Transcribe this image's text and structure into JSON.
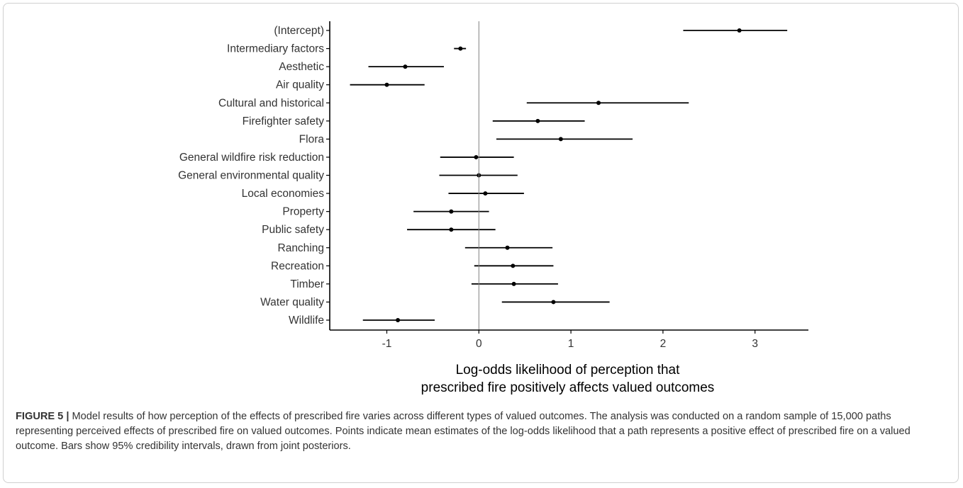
{
  "chart_data": {
    "type": "forest",
    "xlabel": [
      "Log-odds likelihood of perception that",
      "prescribed fire positively affects valued outcomes"
    ],
    "xlim": [
      -1.62,
      3.58
    ],
    "x_ticks": [
      -1,
      0,
      1,
      2,
      3
    ],
    "x_tick_labels": [
      "-1",
      "0",
      "1",
      "2",
      "3"
    ],
    "reference_line": 0,
    "grid": false,
    "rows": [
      {
        "label": "(Intercept)",
        "estimate": 2.83,
        "lower": 2.22,
        "upper": 3.35
      },
      {
        "label": "Intermediary factors",
        "estimate": -0.2,
        "lower": -0.27,
        "upper": -0.14
      },
      {
        "label": "Aesthetic",
        "estimate": -0.8,
        "lower": -1.2,
        "upper": -0.38
      },
      {
        "label": "Air quality",
        "estimate": -1.0,
        "lower": -1.4,
        "upper": -0.59
      },
      {
        "label": "Cultural and historical",
        "estimate": 1.3,
        "lower": 0.52,
        "upper": 2.28
      },
      {
        "label": "Firefighter safety",
        "estimate": 0.64,
        "lower": 0.15,
        "upper": 1.15
      },
      {
        "label": "Flora",
        "estimate": 0.89,
        "lower": 0.19,
        "upper": 1.67
      },
      {
        "label": "General wildfire risk reduction",
        "estimate": -0.03,
        "lower": -0.42,
        "upper": 0.38
      },
      {
        "label": "General environmental quality",
        "estimate": 0.0,
        "lower": -0.43,
        "upper": 0.42
      },
      {
        "label": "Local economies",
        "estimate": 0.07,
        "lower": -0.33,
        "upper": 0.49
      },
      {
        "label": "Property",
        "estimate": -0.3,
        "lower": -0.71,
        "upper": 0.11
      },
      {
        "label": "Public safety",
        "estimate": -0.3,
        "lower": -0.78,
        "upper": 0.18
      },
      {
        "label": "Ranching",
        "estimate": 0.31,
        "lower": -0.15,
        "upper": 0.8
      },
      {
        "label": "Recreation",
        "estimate": 0.37,
        "lower": -0.05,
        "upper": 0.81
      },
      {
        "label": "Timber",
        "estimate": 0.38,
        "lower": -0.08,
        "upper": 0.86
      },
      {
        "label": "Water quality",
        "estimate": 0.81,
        "lower": 0.25,
        "upper": 1.42
      },
      {
        "label": "Wildlife",
        "estimate": -0.88,
        "lower": -1.26,
        "upper": -0.48
      }
    ]
  },
  "caption": {
    "label": "FIGURE 5 |",
    "text": " Model results of how perception of the effects of prescribed fire varies across different types of valued outcomes. The analysis was conducted on a random sample of 15,000 paths representing perceived effects of prescribed fire on valued outcomes. Points indicate mean estimates of the log-odds likelihood that a path represents a positive effect of prescribed fire on a valued outcome. Bars show 95% credibility intervals, drawn from joint posteriors."
  },
  "colors": {
    "mark": "#000000",
    "axis": "#000000",
    "reference_line": "#808080",
    "label_text": "#333333"
  }
}
